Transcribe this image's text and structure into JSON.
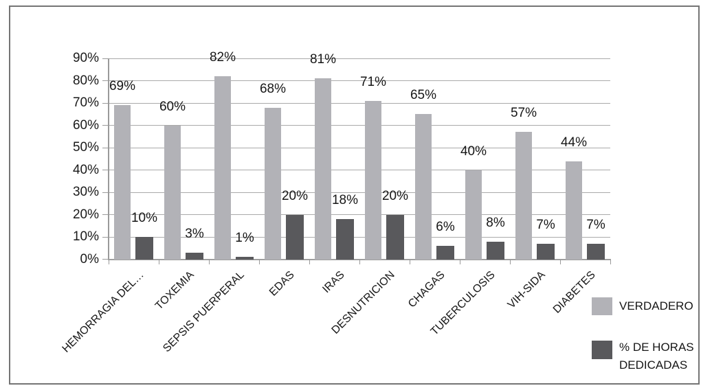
{
  "chart_data": {
    "type": "bar",
    "categories": [
      "HEMORRAGIA DEL…",
      "TOXEMIA",
      "SEPSIS PUERPERAL",
      "EDAS",
      "IRAS",
      "DESNUTRICION",
      "CHAGAS",
      "TUBERCULOSIS",
      "VIH-SIDA",
      "DIABETES"
    ],
    "series": [
      {
        "name": "VERDADERO",
        "color": "#b2b2b7",
        "values": [
          69,
          60,
          82,
          68,
          81,
          71,
          65,
          40,
          57,
          44
        ]
      },
      {
        "name": "% DE HORAS DEDICADAS",
        "color": "#59595c",
        "values": [
          10,
          3,
          1,
          20,
          18,
          20,
          6,
          8,
          7,
          7
        ]
      }
    ],
    "y_axis": {
      "tick_labels": [
        "0%",
        "10%",
        "20%",
        "30%",
        "40%",
        "50%",
        "60%",
        "70%",
        "80%",
        "90%"
      ],
      "min": 0,
      "max": 90,
      "step": 10
    },
    "data_labels": true,
    "label_format": "percent",
    "grid": true,
    "legend_position": "right",
    "colors": {
      "text": "#161616",
      "gridline": "#a9a9a9",
      "axis": "#9a9a9a",
      "frame_border": "#747474",
      "background": "#ffffff"
    }
  }
}
